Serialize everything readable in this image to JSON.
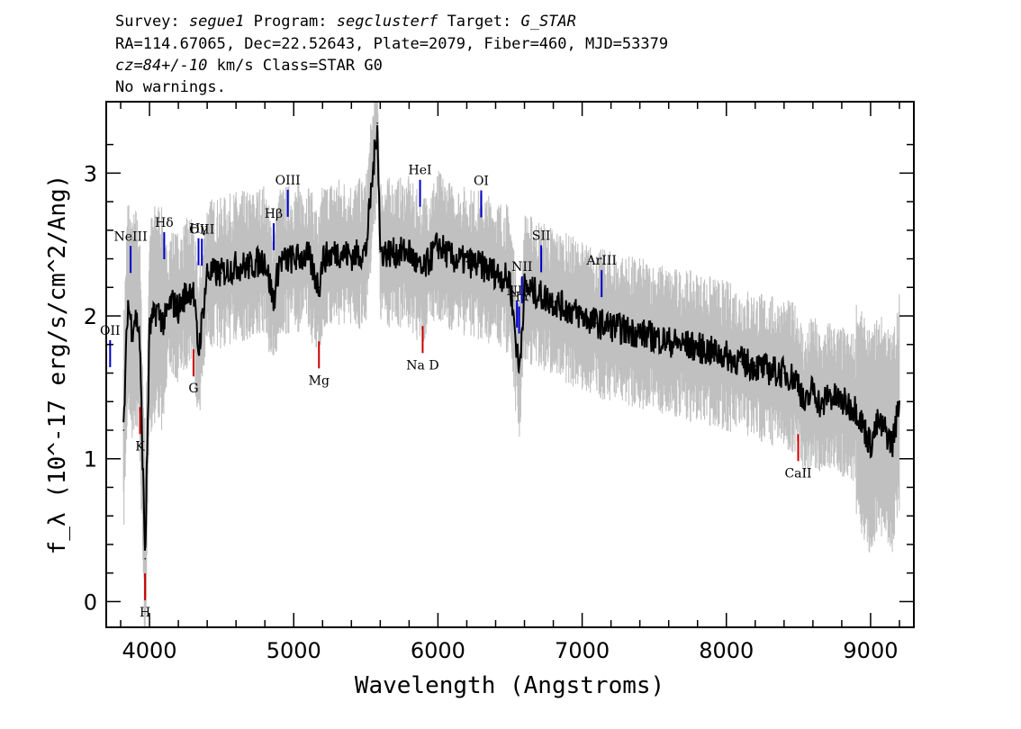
{
  "header": {
    "survey_prefix": "Survey:",
    "survey": "segue1",
    "program_prefix": "Program:",
    "program": "segclusterf",
    "target_prefix": "Target:",
    "target": "G_STAR",
    "line2": "RA=114.67065, Dec=22.52643, Plate=2079, Fiber=460, MJD=53379",
    "cz": "cz=84+/-10",
    "cz_suffix": "km/s Class=STAR G0",
    "line4": "No warnings."
  },
  "chart_data": {
    "type": "line",
    "title": "",
    "xlabel": "Wavelength (Angstroms)",
    "ylabel": "f_λ (10^-17 erg/s/cm^2/Ang)",
    "xlim": [
      3700,
      9300
    ],
    "ylim": [
      -0.18,
      3.5
    ],
    "xticks": [
      4000,
      5000,
      6000,
      7000,
      8000,
      9000
    ],
    "yticks": [
      0,
      1,
      2,
      3
    ],
    "grid": false,
    "series": [
      {
        "color": "#000000",
        "x": [
          3820,
          3850,
          3880,
          3900,
          3930,
          3960,
          3970,
          4000,
          4050,
          4100,
          4150,
          4200,
          4250,
          4300,
          4340,
          4400,
          4500,
          4600,
          4700,
          4800,
          4860,
          4900,
          5000,
          5100,
          5175,
          5200,
          5300,
          5400,
          5500,
          5580,
          5600,
          5700,
          5800,
          5890,
          6000,
          6100,
          6200,
          6300,
          6400,
          6500,
          6563,
          6600,
          6700,
          6800,
          6900,
          7000,
          7100,
          7200,
          7300,
          7400,
          7500,
          7600,
          7700,
          7800,
          7900,
          8000,
          8100,
          8200,
          8300,
          8400,
          8500,
          8542,
          8600,
          8662,
          8700,
          8800,
          8900,
          9000,
          9050,
          9100,
          9150,
          9200
        ],
        "y": [
          1.2,
          2.1,
          1.9,
          2.0,
          1.9,
          0.7,
          0.3,
          1.9,
          2.05,
          1.95,
          2.1,
          2.05,
          2.15,
          2.2,
          1.75,
          2.3,
          2.3,
          2.35,
          2.35,
          2.4,
          2.1,
          2.38,
          2.4,
          2.42,
          2.2,
          2.4,
          2.45,
          2.42,
          2.45,
          3.35,
          2.45,
          2.44,
          2.45,
          2.3,
          2.5,
          2.4,
          2.38,
          2.35,
          2.3,
          2.25,
          1.6,
          2.2,
          2.15,
          2.1,
          2.05,
          2.0,
          1.95,
          1.93,
          1.9,
          1.88,
          1.85,
          1.82,
          1.8,
          1.78,
          1.75,
          1.72,
          1.68,
          1.65,
          1.62,
          1.6,
          1.55,
          1.35,
          1.5,
          1.35,
          1.45,
          1.4,
          1.35,
          1.1,
          1.25,
          1.2,
          1.1,
          1.4
        ]
      }
    ],
    "emission_lines": [
      {
        "label": "OII",
        "wavelength": 3727,
        "color": "#0000cc"
      },
      {
        "label": "NeIII",
        "wavelength": 3869,
        "color": "#0000cc"
      },
      {
        "label": "Hδ",
        "wavelength": 4102,
        "color": "#0000cc"
      },
      {
        "label": "Hγ",
        "wavelength": 4340,
        "color": "#0000cc"
      },
      {
        "label": "OIII",
        "wavelength": 4363,
        "color": "#0000cc"
      },
      {
        "label": "Hβ",
        "wavelength": 4861,
        "color": "#0000cc"
      },
      {
        "label": "OIII",
        "wavelength": 4959,
        "color": "#0000cc"
      },
      {
        "label": "HeI",
        "wavelength": 5876,
        "color": "#0000cc"
      },
      {
        "label": "OI",
        "wavelength": 6300,
        "color": "#0000cc"
      },
      {
        "label": "NII",
        "wavelength": 6548,
        "color": "#0000cc"
      },
      {
        "label": "Hα",
        "wavelength": 6563,
        "color": "#0000cc"
      },
      {
        "label": "NII",
        "wavelength": 6583,
        "color": "#0000cc"
      },
      {
        "label": "SII",
        "wavelength": 6716,
        "color": "#0000cc"
      },
      {
        "label": "ArIII",
        "wavelength": 7135,
        "color": "#0000cc"
      }
    ],
    "absorption_lines": [
      {
        "label": "K",
        "wavelength": 3934,
        "color": "#cc0000"
      },
      {
        "label": "H",
        "wavelength": 3969,
        "color": "#cc0000"
      },
      {
        "label": "G",
        "wavelength": 4305,
        "color": "#cc0000"
      },
      {
        "label": "Mg",
        "wavelength": 5175,
        "color": "#cc0000"
      },
      {
        "label": "Na D",
        "wavelength": 5894,
        "color": "#cc0000"
      },
      {
        "label": "CaII",
        "wavelength": 8498,
        "color": "#cc0000"
      }
    ]
  }
}
